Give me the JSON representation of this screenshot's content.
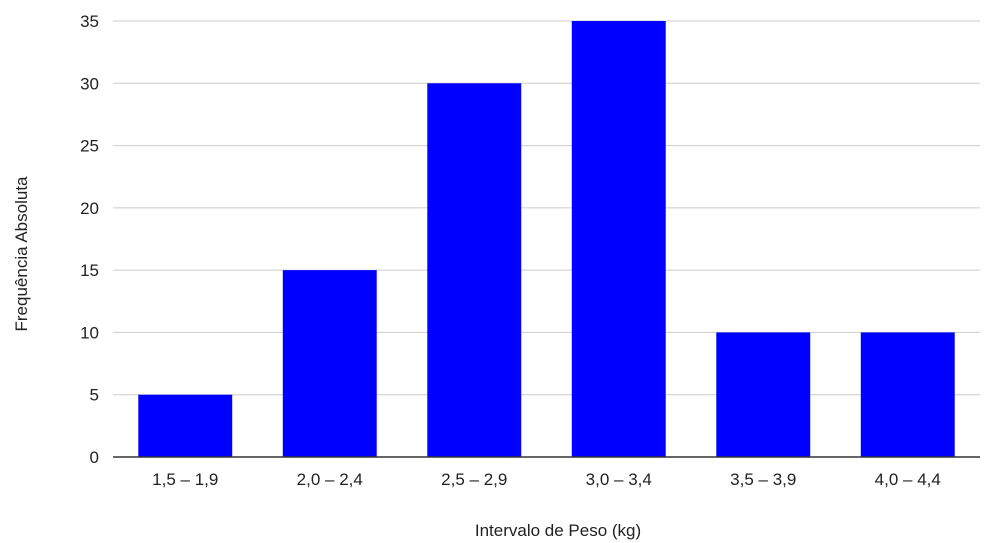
{
  "chart_data": {
    "type": "bar",
    "title": "",
    "xlabel": "Intervalo de Peso (kg)",
    "ylabel": "Frequência Absoluta",
    "categories": [
      "1,5 – 1,9",
      "2,0 – 2,4",
      "2,5 – 2,9",
      "3,0 – 3,4",
      "3,5 – 3,9",
      "4,0 – 4,4"
    ],
    "values": [
      5,
      15,
      30,
      35,
      10,
      10
    ],
    "ylim": [
      0,
      35
    ],
    "yticks": [
      0,
      5,
      10,
      15,
      20,
      25,
      30,
      35
    ],
    "grid": true,
    "legend": "none",
    "colors": {
      "bar": "#0000ff",
      "grid": "#cccccc",
      "axis": "#333333"
    }
  }
}
